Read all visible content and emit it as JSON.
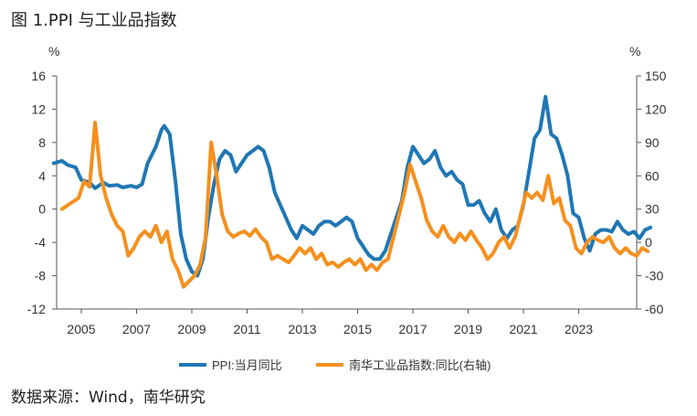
{
  "figure_title": "图 1.PPI 与工业品指数",
  "source_note": "数据来源：Wind，南华研究",
  "chart_data": {
    "type": "line",
    "x_tick_labels": [
      "2005",
      "2007",
      "2009",
      "2011",
      "2013",
      "2015",
      "2017",
      "2019",
      "2021",
      "2023"
    ],
    "x_range": [
      2004.0,
      2025.0
    ],
    "left_axis": {
      "unit": "%",
      "ticks": [
        16,
        12,
        8,
        4,
        0,
        -4,
        -8,
        -12
      ],
      "ylim": [
        -12,
        16
      ]
    },
    "right_axis": {
      "unit": "%",
      "ticks": [
        150,
        120,
        90,
        60,
        30,
        0,
        -30,
        -60
      ],
      "ylim": [
        -60,
        150
      ]
    },
    "grid": false,
    "legend_placement": "bottom",
    "series": [
      {
        "name": "PPI:当月同比",
        "axis": "left",
        "color": "#1F77B4",
        "points": [
          [
            2004.0,
            5.5
          ],
          [
            2004.3,
            5.8
          ],
          [
            2004.5,
            5.3
          ],
          [
            2004.8,
            5.0
          ],
          [
            2005.0,
            3.5
          ],
          [
            2005.3,
            3.2
          ],
          [
            2005.5,
            2.5
          ],
          [
            2005.8,
            3.2
          ],
          [
            2006.0,
            2.8
          ],
          [
            2006.3,
            2.9
          ],
          [
            2006.5,
            2.6
          ],
          [
            2006.8,
            2.8
          ],
          [
            2007.0,
            2.6
          ],
          [
            2007.2,
            3.0
          ],
          [
            2007.4,
            5.5
          ],
          [
            2007.7,
            7.5
          ],
          [
            2007.9,
            9.5
          ],
          [
            2008.0,
            10.0
          ],
          [
            2008.2,
            9.0
          ],
          [
            2008.4,
            3.5
          ],
          [
            2008.6,
            -3.0
          ],
          [
            2008.8,
            -6.0
          ],
          [
            2009.0,
            -7.5
          ],
          [
            2009.2,
            -8.0
          ],
          [
            2009.4,
            -6.0
          ],
          [
            2009.6,
            -1.0
          ],
          [
            2009.8,
            3.0
          ],
          [
            2010.0,
            6.0
          ],
          [
            2010.2,
            7.0
          ],
          [
            2010.4,
            6.5
          ],
          [
            2010.6,
            4.5
          ],
          [
            2010.8,
            5.5
          ],
          [
            2011.0,
            6.5
          ],
          [
            2011.2,
            7.0
          ],
          [
            2011.4,
            7.5
          ],
          [
            2011.6,
            7.0
          ],
          [
            2011.8,
            5.0
          ],
          [
            2012.0,
            2.0
          ],
          [
            2012.2,
            0.5
          ],
          [
            2012.4,
            -1.0
          ],
          [
            2012.6,
            -2.5
          ],
          [
            2012.8,
            -3.5
          ],
          [
            2013.0,
            -2.0
          ],
          [
            2013.2,
            -2.5
          ],
          [
            2013.4,
            -3.0
          ],
          [
            2013.6,
            -2.0
          ],
          [
            2013.8,
            -1.5
          ],
          [
            2014.0,
            -1.5
          ],
          [
            2014.2,
            -2.0
          ],
          [
            2014.4,
            -1.5
          ],
          [
            2014.6,
            -1.0
          ],
          [
            2014.8,
            -1.5
          ],
          [
            2015.0,
            -3.5
          ],
          [
            2015.2,
            -4.5
          ],
          [
            2015.4,
            -5.5
          ],
          [
            2015.6,
            -6.0
          ],
          [
            2015.8,
            -6.0
          ],
          [
            2016.0,
            -5.0
          ],
          [
            2016.2,
            -3.0
          ],
          [
            2016.4,
            -1.0
          ],
          [
            2016.6,
            1.0
          ],
          [
            2016.8,
            5.0
          ],
          [
            2017.0,
            7.5
          ],
          [
            2017.2,
            6.5
          ],
          [
            2017.4,
            5.5
          ],
          [
            2017.6,
            6.0
          ],
          [
            2017.8,
            7.0
          ],
          [
            2018.0,
            5.0
          ],
          [
            2018.2,
            4.0
          ],
          [
            2018.4,
            4.5
          ],
          [
            2018.6,
            3.5
          ],
          [
            2018.8,
            3.0
          ],
          [
            2019.0,
            0.5
          ],
          [
            2019.2,
            0.5
          ],
          [
            2019.4,
            1.0
          ],
          [
            2019.6,
            -0.5
          ],
          [
            2019.8,
            -1.5
          ],
          [
            2020.0,
            0.0
          ],
          [
            2020.2,
            -2.5
          ],
          [
            2020.4,
            -3.5
          ],
          [
            2020.6,
            -2.5
          ],
          [
            2020.8,
            -2.0
          ],
          [
            2021.0,
            0.5
          ],
          [
            2021.2,
            4.5
          ],
          [
            2021.4,
            8.5
          ],
          [
            2021.6,
            9.5
          ],
          [
            2021.8,
            13.5
          ],
          [
            2022.0,
            9.0
          ],
          [
            2022.2,
            8.5
          ],
          [
            2022.4,
            6.5
          ],
          [
            2022.6,
            4.0
          ],
          [
            2022.8,
            -0.5
          ],
          [
            2023.0,
            -1.0
          ],
          [
            2023.2,
            -3.5
          ],
          [
            2023.4,
            -5.0
          ],
          [
            2023.6,
            -3.0
          ],
          [
            2023.8,
            -2.5
          ],
          [
            2024.0,
            -2.5
          ],
          [
            2024.2,
            -2.7
          ],
          [
            2024.4,
            -1.5
          ],
          [
            2024.6,
            -2.5
          ],
          [
            2024.8,
            -3.0
          ],
          [
            2025.0,
            -2.7
          ],
          [
            2025.2,
            -3.5
          ],
          [
            2025.4,
            -2.5
          ],
          [
            2025.6,
            -2.2
          ]
        ]
      },
      {
        "name": "南华工业品指数:同比(右轴)",
        "axis": "right",
        "color": "#F5901E",
        "points": [
          [
            2004.3,
            30
          ],
          [
            2004.6,
            35
          ],
          [
            2004.9,
            40
          ],
          [
            2005.1,
            55
          ],
          [
            2005.3,
            50
          ],
          [
            2005.5,
            108
          ],
          [
            2005.7,
            60
          ],
          [
            2005.9,
            40
          ],
          [
            2006.1,
            25
          ],
          [
            2006.3,
            15
          ],
          [
            2006.5,
            10
          ],
          [
            2006.7,
            -12
          ],
          [
            2006.9,
            -5
          ],
          [
            2007.1,
            5
          ],
          [
            2007.3,
            10
          ],
          [
            2007.5,
            5
          ],
          [
            2007.7,
            15
          ],
          [
            2007.9,
            0
          ],
          [
            2008.1,
            10
          ],
          [
            2008.3,
            -15
          ],
          [
            2008.5,
            -25
          ],
          [
            2008.7,
            -40
          ],
          [
            2008.9,
            -35
          ],
          [
            2009.1,
            -30
          ],
          [
            2009.3,
            -20
          ],
          [
            2009.5,
            5
          ],
          [
            2009.7,
            90
          ],
          [
            2009.9,
            60
          ],
          [
            2010.1,
            25
          ],
          [
            2010.3,
            10
          ],
          [
            2010.5,
            5
          ],
          [
            2010.7,
            8
          ],
          [
            2010.9,
            10
          ],
          [
            2011.1,
            6
          ],
          [
            2011.3,
            12
          ],
          [
            2011.5,
            5
          ],
          [
            2011.7,
            0
          ],
          [
            2011.9,
            -15
          ],
          [
            2012.1,
            -12
          ],
          [
            2012.3,
            -15
          ],
          [
            2012.5,
            -18
          ],
          [
            2012.7,
            -12
          ],
          [
            2012.9,
            -5
          ],
          [
            2013.1,
            -10
          ],
          [
            2013.3,
            -5
          ],
          [
            2013.5,
            -15
          ],
          [
            2013.7,
            -10
          ],
          [
            2013.9,
            -20
          ],
          [
            2014.1,
            -18
          ],
          [
            2014.3,
            -22
          ],
          [
            2014.5,
            -18
          ],
          [
            2014.7,
            -15
          ],
          [
            2014.9,
            -20
          ],
          [
            2015.1,
            -15
          ],
          [
            2015.3,
            -25
          ],
          [
            2015.5,
            -20
          ],
          [
            2015.7,
            -25
          ],
          [
            2015.9,
            -18
          ],
          [
            2016.1,
            -15
          ],
          [
            2016.3,
            5
          ],
          [
            2016.5,
            25
          ],
          [
            2016.7,
            45
          ],
          [
            2016.9,
            70
          ],
          [
            2017.1,
            55
          ],
          [
            2017.3,
            40
          ],
          [
            2017.5,
            20
          ],
          [
            2017.7,
            10
          ],
          [
            2017.9,
            5
          ],
          [
            2018.1,
            15
          ],
          [
            2018.3,
            5
          ],
          [
            2018.5,
            0
          ],
          [
            2018.7,
            8
          ],
          [
            2018.9,
            2
          ],
          [
            2019.1,
            10
          ],
          [
            2019.3,
            2
          ],
          [
            2019.5,
            -5
          ],
          [
            2019.7,
            -15
          ],
          [
            2019.9,
            -10
          ],
          [
            2020.1,
            0
          ],
          [
            2020.3,
            5
          ],
          [
            2020.5,
            -5
          ],
          [
            2020.7,
            5
          ],
          [
            2020.9,
            25
          ],
          [
            2021.1,
            45
          ],
          [
            2021.3,
            40
          ],
          [
            2021.5,
            45
          ],
          [
            2021.7,
            38
          ],
          [
            2021.9,
            60
          ],
          [
            2022.1,
            35
          ],
          [
            2022.3,
            40
          ],
          [
            2022.5,
            20
          ],
          [
            2022.7,
            15
          ],
          [
            2022.9,
            -5
          ],
          [
            2023.1,
            -10
          ],
          [
            2023.3,
            0
          ],
          [
            2023.5,
            5
          ],
          [
            2023.7,
            2
          ],
          [
            2023.9,
            0
          ],
          [
            2024.1,
            5
          ],
          [
            2024.3,
            -5
          ],
          [
            2024.5,
            -10
          ],
          [
            2024.7,
            -5
          ],
          [
            2024.9,
            -10
          ],
          [
            2025.1,
            -12
          ],
          [
            2025.3,
            -5
          ],
          [
            2025.5,
            -8
          ]
        ]
      }
    ]
  }
}
